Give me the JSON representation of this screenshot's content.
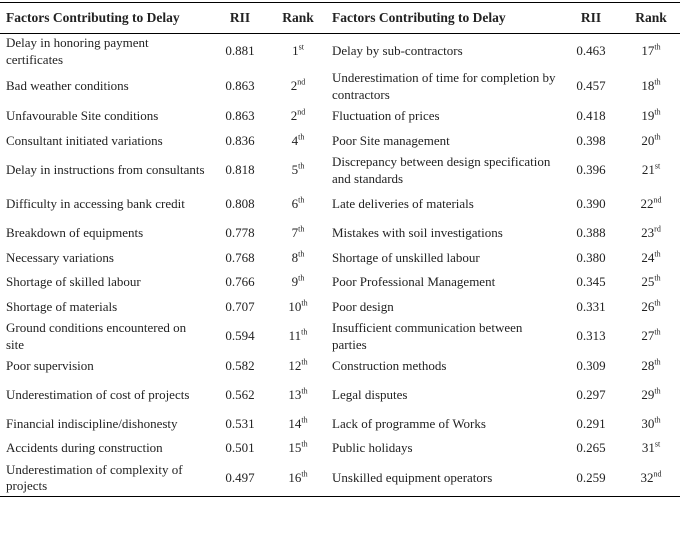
{
  "headers": {
    "factor": "Factors Contributing to Delay",
    "rii": "RII",
    "rank": "Rank"
  },
  "rows": [
    {
      "left": {
        "factor": "Delay in honoring payment certificates",
        "rii": "0.881",
        "rank": "1",
        "suffix": "st"
      },
      "right": {
        "factor": "Delay by sub-contractors",
        "rii": "0.463",
        "rank": "17",
        "suffix": "th"
      },
      "tall": true
    },
    {
      "left": {
        "factor": "Bad weather conditions",
        "rii": "0.863",
        "rank": "2",
        "suffix": "nd"
      },
      "right": {
        "factor": "Underestimation of time for completion by contractors",
        "rii": "0.457",
        "rank": "18",
        "suffix": "th"
      },
      "tall": true
    },
    {
      "left": {
        "factor": "Unfavourable Site conditions",
        "rii": "0.863",
        "rank": "2",
        "suffix": "nd"
      },
      "right": {
        "factor": "Fluctuation of prices",
        "rii": "0.418",
        "rank": "19",
        "suffix": "th"
      },
      "tall": false
    },
    {
      "left": {
        "factor": "Consultant initiated variations",
        "rii": "0.836",
        "rank": "4",
        "suffix": "th"
      },
      "right": {
        "factor": "Poor Site management",
        "rii": "0.398",
        "rank": "20",
        "suffix": "th"
      },
      "tall": false
    },
    {
      "left": {
        "factor": "Delay in instructions from consultants",
        "rii": "0.818",
        "rank": "5",
        "suffix": "th"
      },
      "right": {
        "factor": "Discrepancy between design specification and standards",
        "rii": "0.396",
        "rank": "21",
        "suffix": "st"
      },
      "tall": true
    },
    {
      "left": {
        "factor": "Difficulty in accessing bank credit",
        "rii": "0.808",
        "rank": "6",
        "suffix": "th"
      },
      "right": {
        "factor": "Late deliveries of materials",
        "rii": "0.390",
        "rank": "22",
        "suffix": "nd"
      },
      "tall": true
    },
    {
      "left": {
        "factor": "Breakdown of equipments",
        "rii": "0.778",
        "rank": "7",
        "suffix": "th"
      },
      "right": {
        "factor": "Mistakes with soil investigations",
        "rii": "0.388",
        "rank": "23",
        "suffix": "rd"
      },
      "tall": false
    },
    {
      "left": {
        "factor": "Necessary variations",
        "rii": "0.768",
        "rank": "8",
        "suffix": "th"
      },
      "right": {
        "factor": "Shortage of unskilled labour",
        "rii": "0.380",
        "rank": "24",
        "suffix": "th"
      },
      "tall": false
    },
    {
      "left": {
        "factor": "Shortage of skilled labour",
        "rii": "0.766",
        "rank": "9",
        "suffix": "th"
      },
      "right": {
        "factor": "Poor Professional Management",
        "rii": "0.345",
        "rank": "25",
        "suffix": "th"
      },
      "tall": false
    },
    {
      "left": {
        "factor": "Shortage of materials",
        "rii": "0.707",
        "rank": "10",
        "suffix": "th"
      },
      "right": {
        "factor": "Poor design",
        "rii": "0.331",
        "rank": "26",
        "suffix": "th"
      },
      "tall": false
    },
    {
      "left": {
        "factor": "Ground conditions encountered on site",
        "rii": "0.594",
        "rank": "11",
        "suffix": "th"
      },
      "right": {
        "factor": "Insufficient communication between parties",
        "rii": "0.313",
        "rank": "27",
        "suffix": "th"
      },
      "tall": true
    },
    {
      "left": {
        "factor": "Poor supervision",
        "rii": "0.582",
        "rank": "12",
        "suffix": "th"
      },
      "right": {
        "factor": "Construction methods",
        "rii": "0.309",
        "rank": "28",
        "suffix": "th"
      },
      "tall": false
    },
    {
      "left": {
        "factor": "Underestimation of cost of projects",
        "rii": "0.562",
        "rank": "13",
        "suffix": "th"
      },
      "right": {
        "factor": "Legal disputes",
        "rii": "0.297",
        "rank": "29",
        "suffix": "th"
      },
      "tall": true
    },
    {
      "left": {
        "factor": "Financial indiscipline/dishonesty",
        "rii": "0.531",
        "rank": "14",
        "suffix": "th"
      },
      "right": {
        "factor": "Lack of programme of Works",
        "rii": "0.291",
        "rank": "30",
        "suffix": "th"
      },
      "tall": false
    },
    {
      "left": {
        "factor": "Accidents during construction",
        "rii": "0.501",
        "rank": "15",
        "suffix": "th"
      },
      "right": {
        "factor": "Public holidays",
        "rii": "0.265",
        "rank": "31",
        "suffix": "st"
      },
      "tall": false
    },
    {
      "left": {
        "factor": "Underestimation of complexity of projects",
        "rii": "0.497",
        "rank": "16",
        "suffix": "th"
      },
      "right": {
        "factor": "Unskilled equipment operators",
        "rii": "0.259",
        "rank": "32",
        "suffix": "nd"
      },
      "tall": true
    }
  ]
}
